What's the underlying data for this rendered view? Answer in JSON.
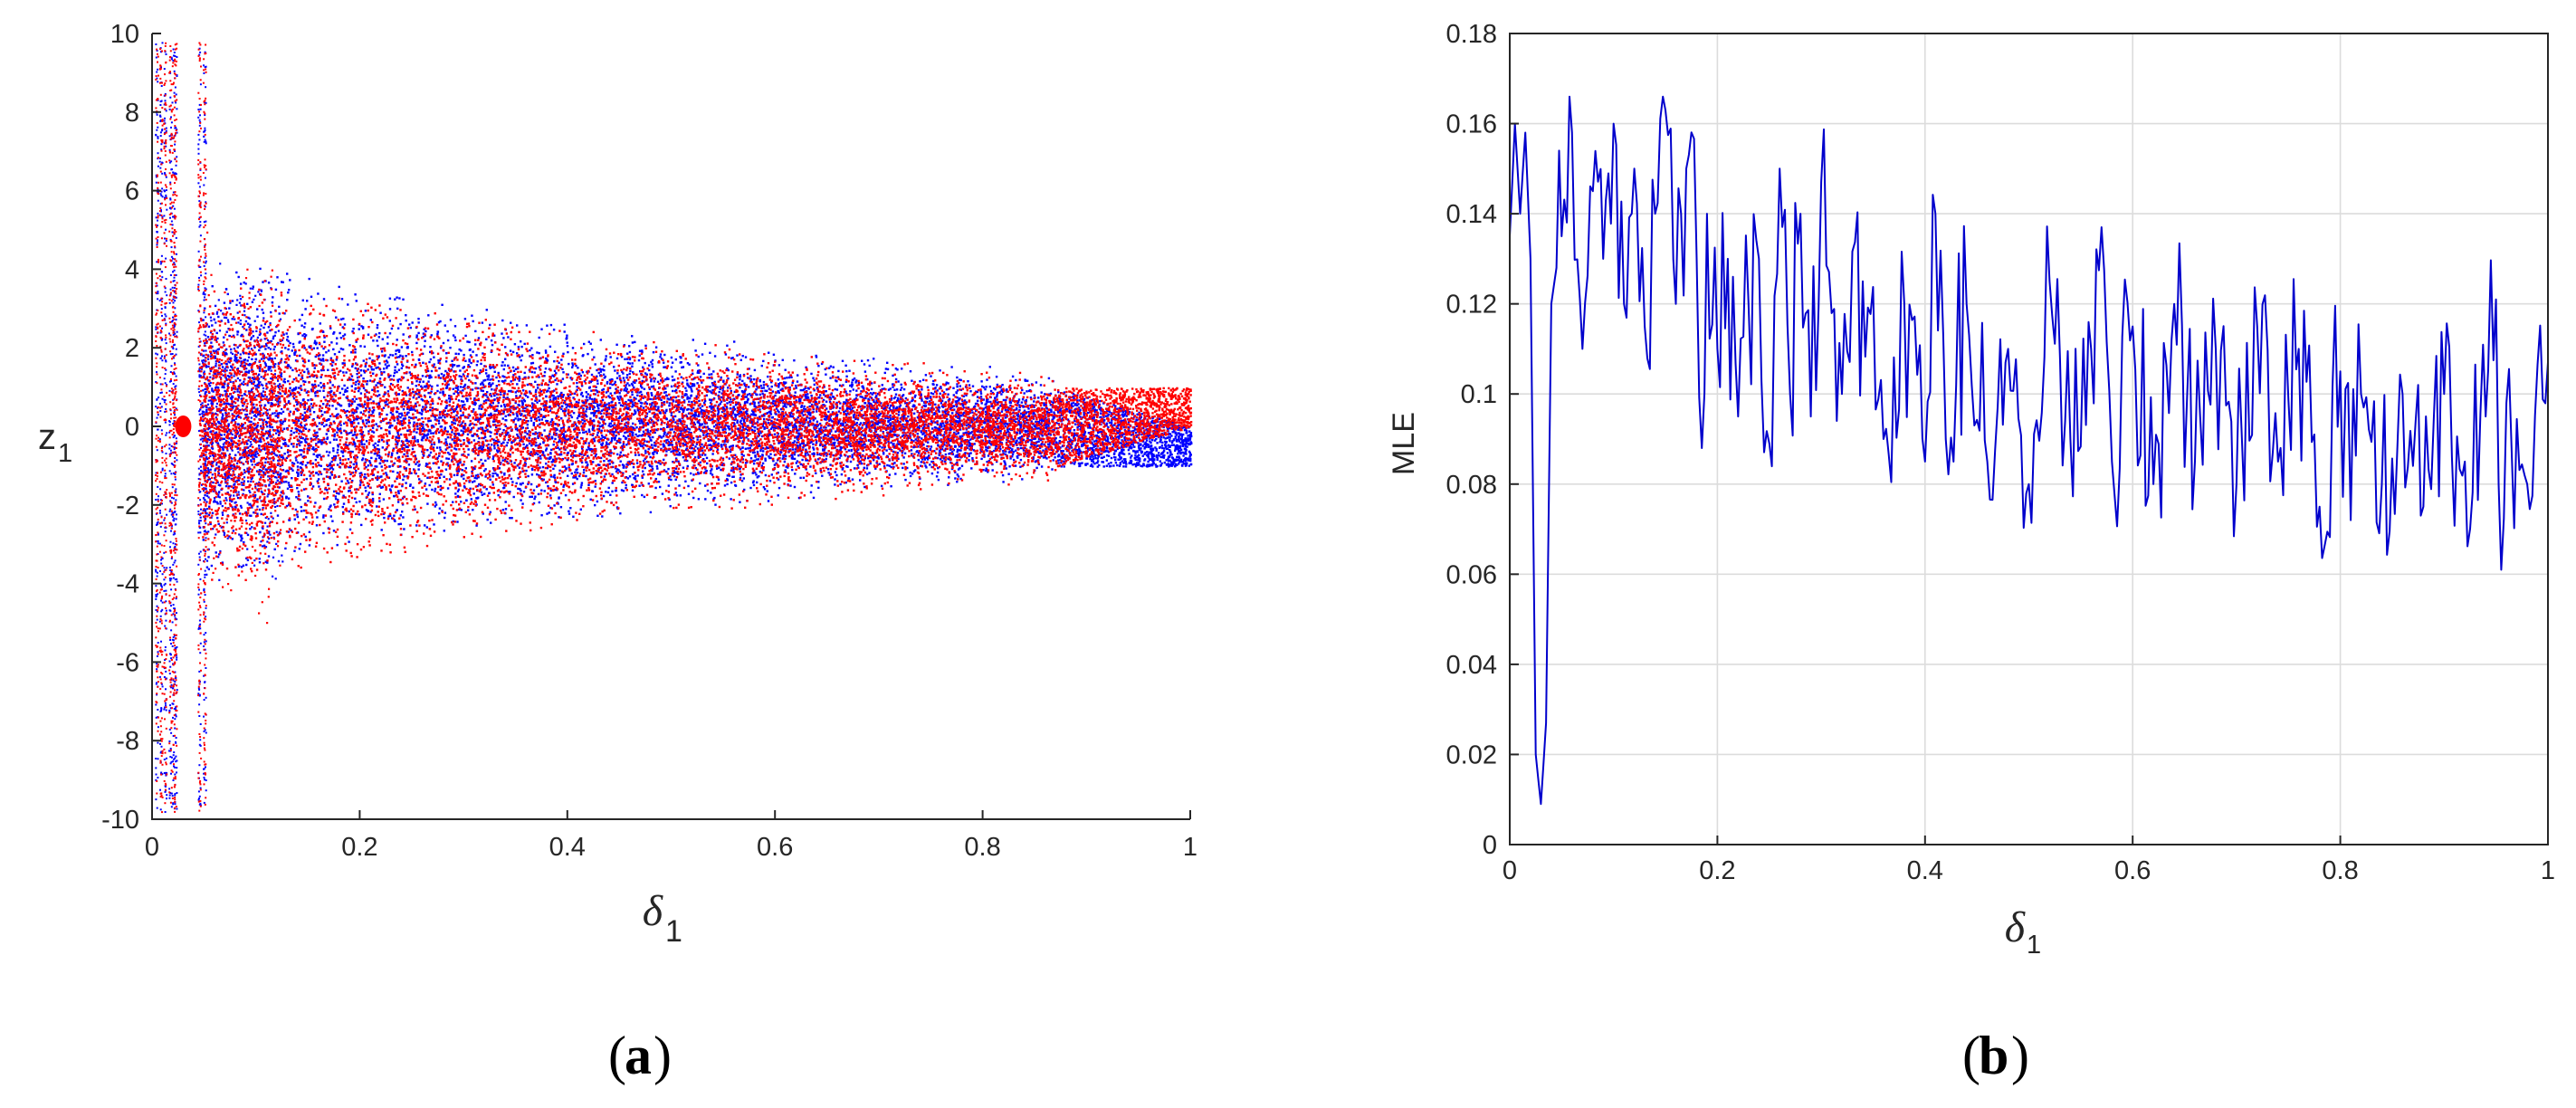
{
  "panels": [
    {
      "id": "a",
      "label_open": "(",
      "label_letter": "a",
      "label_close": ")",
      "chart_data": {
        "type": "scatter",
        "title": "",
        "xlabel": "δ",
        "xlabel_sub": "1",
        "ylabel": "z",
        "ylabel_sub": "1",
        "xlim": [
          0,
          1
        ],
        "ylim": [
          -10,
          10
        ],
        "xticks": [
          0,
          0.2,
          0.4,
          0.6,
          0.8,
          1
        ],
        "xtick_labels": [
          "0",
          "0.2",
          "0.4",
          "0.6",
          "0.8",
          "1"
        ],
        "yticks": [
          -10,
          -8,
          -6,
          -4,
          -2,
          0,
          2,
          4,
          6,
          8,
          10
        ],
        "ytick_labels": [
          "-10",
          "-8",
          "-6",
          "-4",
          "-2",
          "0",
          "2",
          "4",
          "6",
          "8",
          "10"
        ],
        "grid": false,
        "series": [
          {
            "color": "#0000ff",
            "envelope": {
              "x": [
                0.05,
                0.1,
                0.2,
                0.3,
                0.4,
                0.5,
                0.6,
                0.7,
                0.8,
                0.87,
                1.0
              ],
              "upper": [
                3.4,
                3.6,
                3.0,
                2.6,
                2.2,
                1.9,
                1.6,
                1.3,
                1.15,
                1.0,
                0.0
              ],
              "lower": [
                -3.2,
                -3.0,
                -2.6,
                -2.2,
                -1.9,
                -1.6,
                -1.4,
                -1.2,
                -1.05,
                -1.0,
                -1.0
              ]
            }
          },
          {
            "color": "#ff0000",
            "envelope": {
              "x": [
                0.05,
                0.1,
                0.2,
                0.3,
                0.4,
                0.5,
                0.6,
                0.7,
                0.8,
                0.87,
                1.0
              ],
              "upper": [
                3.0,
                3.1,
                2.7,
                2.3,
                2.0,
                1.7,
                1.5,
                1.25,
                1.1,
                1.0,
                1.0
              ],
              "lower": [
                -3.6,
                -3.4,
                -2.9,
                -2.4,
                -2.0,
                -1.7,
                -1.5,
                -1.25,
                -1.1,
                -1.0,
                0.0
              ]
            }
          }
        ]
      }
    },
    {
      "id": "b",
      "label_open": "(",
      "label_letter": "b",
      "label_close": ")",
      "chart_data": {
        "type": "line",
        "title": "",
        "xlabel": "δ",
        "xlabel_sub": "1",
        "ylabel": "MLE",
        "xlim": [
          0,
          1
        ],
        "ylim": [
          0,
          0.18
        ],
        "xticks": [
          0,
          0.2,
          0.4,
          0.6,
          0.8,
          1
        ],
        "xtick_labels": [
          "0",
          "0.2",
          "0.4",
          "0.6",
          "0.8",
          "1"
        ],
        "yticks": [
          0,
          0.02,
          0.04,
          0.06,
          0.08,
          0.1,
          0.12,
          0.14,
          0.16,
          0.18
        ],
        "ytick_labels": [
          "0",
          "0.02",
          "0.04",
          "0.06",
          "0.08",
          "0.1",
          "0.12",
          "0.14",
          "0.16",
          "0.18"
        ],
        "grid": true,
        "line_color": "#0000cc",
        "series": [
          {
            "x": [
              0,
              0.005,
              0.01,
              0.015,
              0.02,
              0.025,
              0.03,
              0.035,
              0.04,
              0.045,
              0.05,
              0.06,
              0.07,
              0.08,
              0.09,
              0.1,
              0.11,
              0.12,
              0.13,
              0.14,
              0.15,
              0.16,
              0.17,
              0.18,
              0.185,
              0.19,
              0.2,
              0.21,
              0.22,
              0.23,
              0.24,
              0.25,
              0.26,
              0.27,
              0.28,
              0.29,
              0.3,
              0.32,
              0.34,
              0.36,
              0.38,
              0.4,
              0.41,
              0.42,
              0.44,
              0.46,
              0.48,
              0.5,
              0.52,
              0.54,
              0.56,
              0.57,
              0.58,
              0.6,
              0.62,
              0.64,
              0.66,
              0.68,
              0.7,
              0.72,
              0.74,
              0.76,
              0.78,
              0.8,
              0.81,
              0.82,
              0.84,
              0.86,
              0.88,
              0.9,
              0.92,
              0.94,
              0.95,
              0.955,
              0.96,
              0.98,
              1.0
            ],
            "y": [
              0.135,
              0.16,
              0.14,
              0.158,
              0.13,
              0.02,
              0.009,
              0.027,
              0.12,
              0.128,
              0.135,
              0.158,
              0.11,
              0.145,
              0.13,
              0.16,
              0.12,
              0.15,
              0.115,
              0.14,
              0.163,
              0.12,
              0.15,
              0.13,
              0.088,
              0.14,
              0.11,
              0.13,
              0.095,
              0.12,
              0.13,
              0.089,
              0.15,
              0.1,
              0.14,
              0.095,
              0.147,
              0.1,
              0.125,
              0.09,
              0.12,
              0.085,
              0.14,
              0.09,
              0.12,
              0.085,
              0.11,
              0.08,
              0.125,
              0.09,
              0.11,
              0.137,
              0.085,
              0.115,
              0.08,
              0.12,
              0.085,
              0.11,
              0.08,
              0.115,
              0.085,
              0.11,
              0.075,
              0.105,
              0.072,
              0.1,
              0.08,
              0.1,
              0.075,
              0.1,
              0.085,
              0.095,
              0.121,
              0.061,
              0.098,
              0.08,
              0.107
            ]
          }
        ]
      }
    }
  ]
}
